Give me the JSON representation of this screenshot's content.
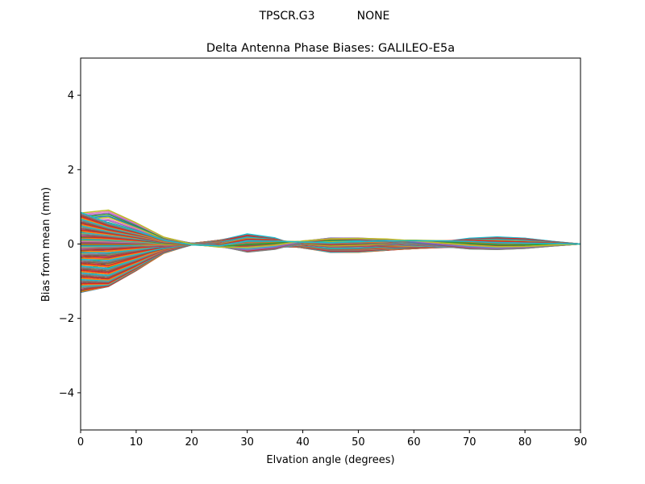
{
  "suptitle": {
    "receiver": "TPSCR.G3",
    "radome": "NONE"
  },
  "chart_data": {
    "type": "line",
    "title": "Delta Antenna Phase Biases: GALILEO-E5a",
    "xlabel": "Elvation angle (degrees)",
    "ylabel": "Bias from mean (mm)",
    "xlim": [
      0,
      90
    ],
    "ylim": [
      -5,
      5
    ],
    "xticks": [
      0,
      10,
      20,
      30,
      40,
      50,
      60,
      70,
      80,
      90
    ],
    "xtick_labels": [
      "0",
      "10",
      "20",
      "30",
      "40",
      "50",
      "60",
      "70",
      "80",
      "90"
    ],
    "yticks": [
      -4,
      -2,
      0,
      2,
      4
    ],
    "ytick_labels": [
      "−4",
      "−2",
      "0",
      "2",
      "4"
    ],
    "grid": false,
    "legend": "none",
    "x": [
      0,
      5,
      10,
      15,
      20,
      25,
      30,
      35,
      40,
      45,
      50,
      55,
      60,
      65,
      70,
      75,
      80,
      85,
      90
    ],
    "profile_primary": [
      1.0,
      0.88,
      0.55,
      0.18,
      0.0,
      -0.08,
      -0.1,
      -0.04,
      0.08,
      0.14,
      0.15,
      0.13,
      0.08,
      0.02,
      -0.04,
      -0.08,
      -0.07,
      -0.03,
      0.0
    ],
    "profile_secondary": [
      0.0,
      0.02,
      0.0,
      -0.1,
      -0.12,
      0.0,
      0.8,
      0.6,
      0.0,
      -0.3,
      -0.2,
      0.0,
      0.2,
      0.4,
      0.55,
      0.5,
      0.38,
      0.18,
      0.0
    ],
    "series_count": 120,
    "amplitude_range": [
      -1.3,
      0.85
    ],
    "colors": [
      "#1f77b4",
      "#ff7f0e",
      "#2ca02c",
      "#d62728",
      "#9467bd",
      "#8c564b",
      "#e377c2",
      "#7f7f7f",
      "#bcbd22",
      "#17becf"
    ]
  }
}
